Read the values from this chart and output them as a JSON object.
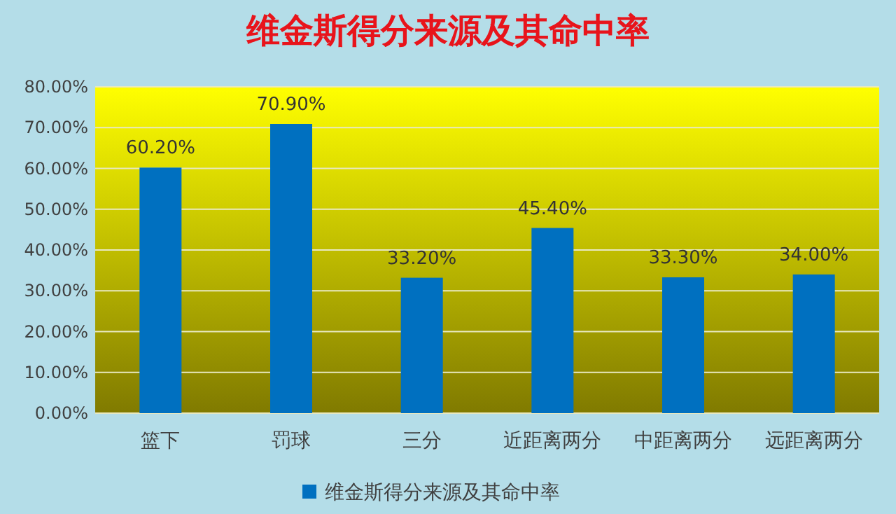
{
  "chart_data": {
    "type": "bar",
    "title": "维金斯得分来源及其命中率",
    "categories": [
      "篮下",
      "罚球",
      "三分",
      "近距离两分",
      "中距离两分",
      "远距离两分"
    ],
    "series": [
      {
        "name": "维金斯得分来源及其命中率",
        "color": "#0070c0",
        "values": [
          60.2,
          70.9,
          33.2,
          45.4,
          33.3,
          34.0
        ],
        "value_labels": [
          "60.20%",
          "70.90%",
          "33.20%",
          "45.40%",
          "33.30%",
          "34.00%"
        ]
      }
    ],
    "ylim": [
      0,
      80
    ],
    "yticks": [
      {
        "value": 0,
        "label": "0.00%"
      },
      {
        "value": 10,
        "label": "10.00%"
      },
      {
        "value": 20,
        "label": "20.00%"
      },
      {
        "value": 30,
        "label": "30.00%"
      },
      {
        "value": 40,
        "label": "40.00%"
      },
      {
        "value": 50,
        "label": "50.00%"
      },
      {
        "value": 60,
        "label": "60.00%"
      },
      {
        "value": 70,
        "label": "70.00%"
      },
      {
        "value": 80,
        "label": "80.00%"
      }
    ],
    "grid": "y",
    "legend": "bottom"
  }
}
